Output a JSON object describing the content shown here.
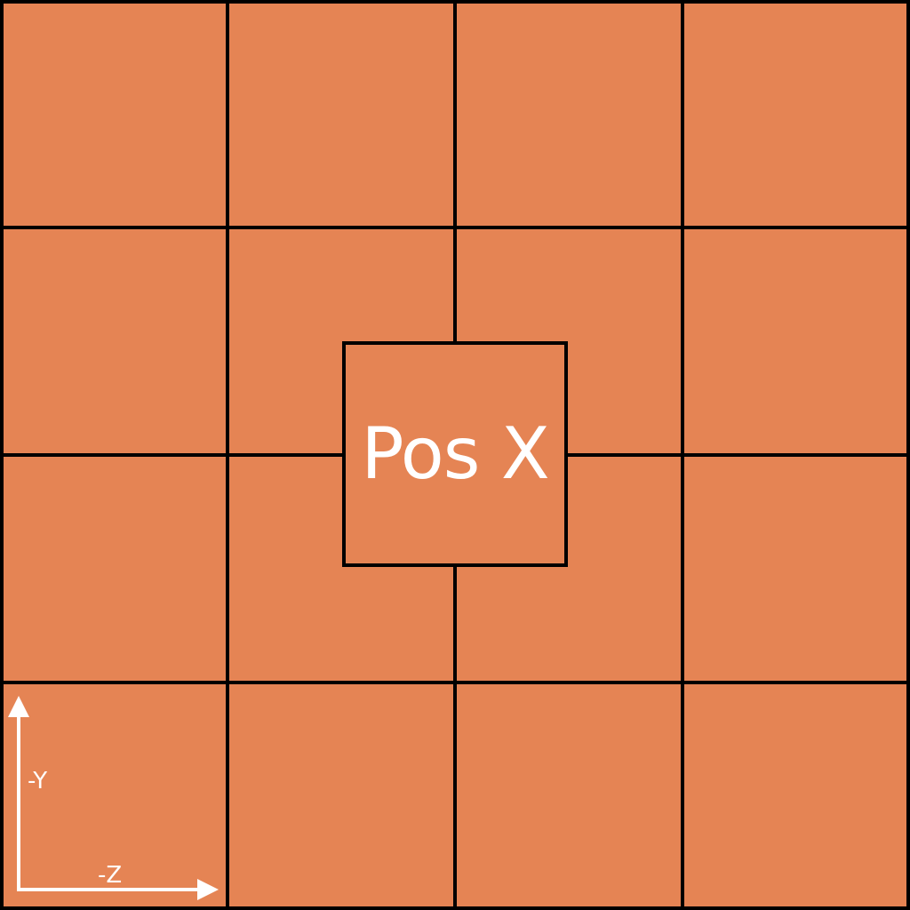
{
  "face": {
    "label": "Pos X"
  },
  "axes": {
    "vertical_label": "-Y",
    "horizontal_label": "-Z"
  },
  "colors": {
    "background": "#e58454",
    "grid": "#000000",
    "text": "#ffffff"
  }
}
